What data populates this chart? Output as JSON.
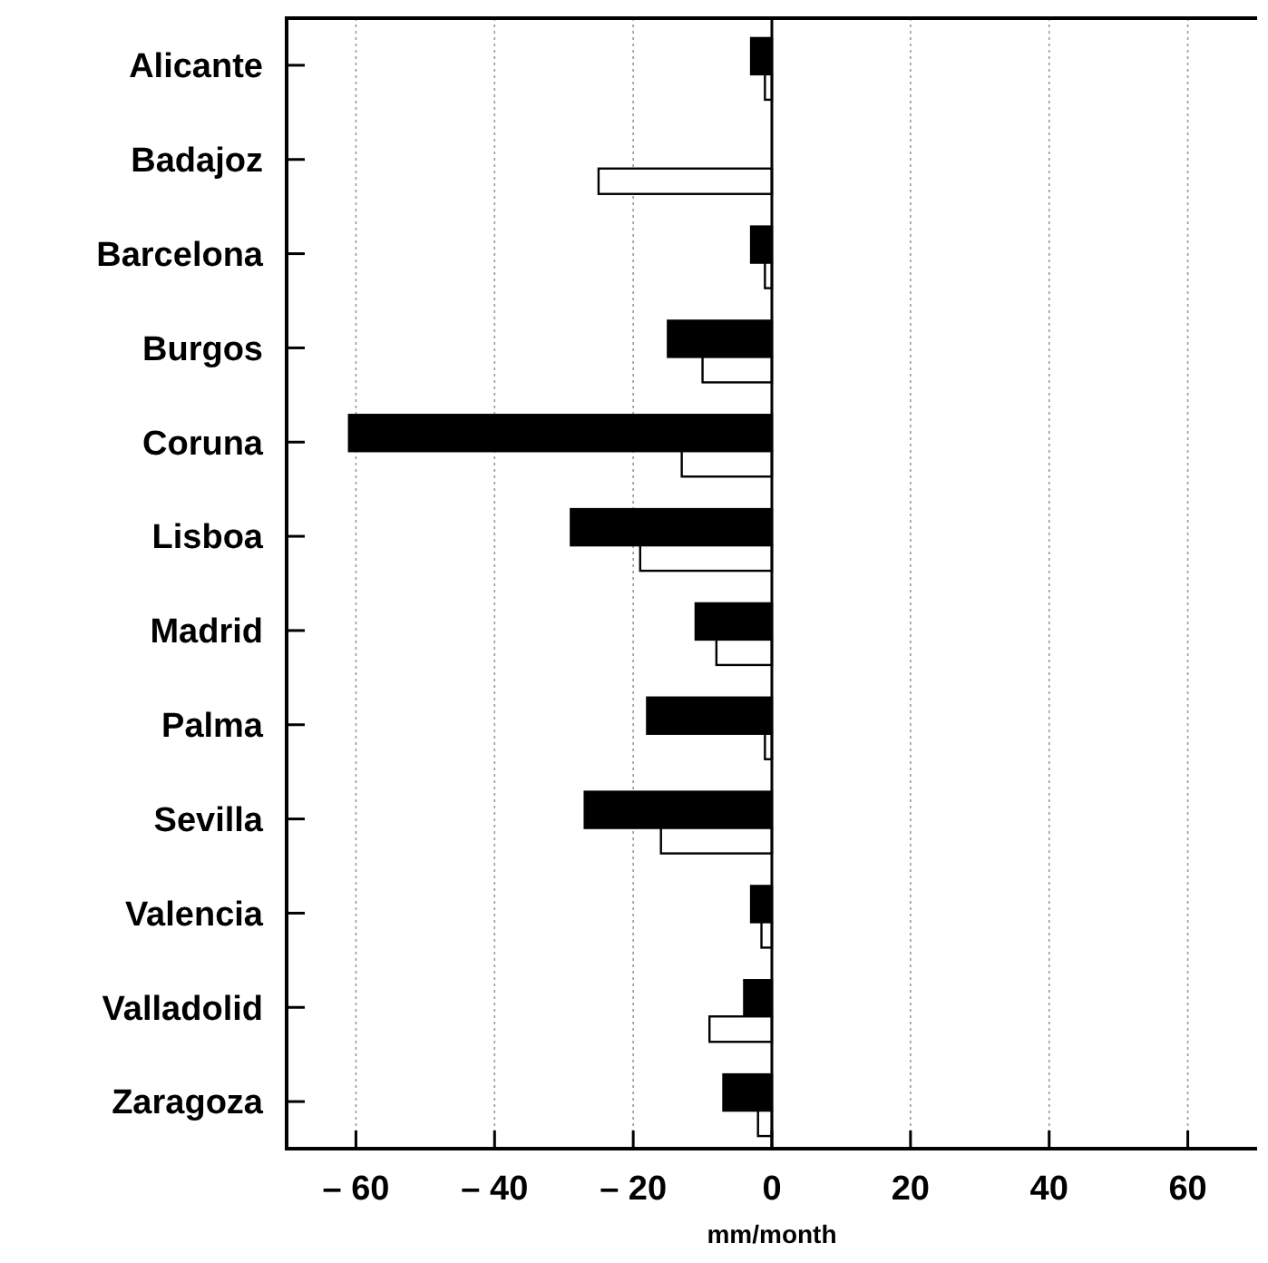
{
  "chart_data": {
    "type": "bar",
    "orientation": "horizontal",
    "xlabel": "mm/month",
    "categories": [
      "Alicante",
      "Badajoz",
      "Barcelona",
      "Burgos",
      "Coruna",
      "Lisboa",
      "Madrid",
      "Palma",
      "Sevilla",
      "Valencia",
      "Valladolid",
      "Zaragoza"
    ],
    "series": [
      {
        "color": "#000000",
        "values": [
          -3,
          null,
          -3,
          -15,
          -61,
          -29,
          -11,
          -18,
          -27,
          -3,
          -4,
          -7
        ]
      },
      {
        "color": "#ffffff",
        "values": [
          -1,
          -25,
          -1,
          -10,
          -13,
          -19,
          -8,
          -1,
          -16,
          -1.5,
          -9,
          -2
        ]
      }
    ],
    "xlim": [
      -70,
      70
    ],
    "xticks": [
      {
        "value": -60,
        "label": "– 60"
      },
      {
        "value": -40,
        "label": "– 40"
      },
      {
        "value": -20,
        "label": "– 20"
      },
      0,
      20,
      40,
      60
    ],
    "grid": "x"
  }
}
